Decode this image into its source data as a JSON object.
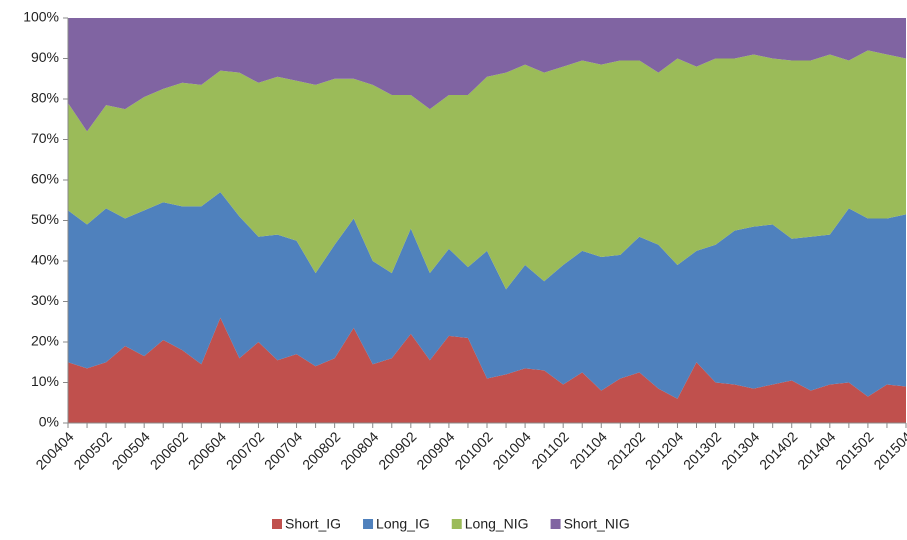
{
  "chart_data": {
    "type": "stacked-area-100",
    "categories": [
      "200404",
      null,
      "200502",
      null,
      "200504",
      null,
      "200602",
      null,
      "200604",
      null,
      "200702",
      null,
      "200704",
      null,
      "200802",
      null,
      "200804",
      null,
      "200902",
      null,
      "200904",
      null,
      "201002",
      null,
      "201004",
      null,
      "201102",
      null,
      "201104",
      null,
      "201202",
      null,
      "201204",
      null,
      "201302",
      null,
      "201304",
      null,
      "201402",
      null,
      "201404",
      null,
      "201502",
      null,
      "201504"
    ],
    "series": [
      {
        "name": "Short_IG",
        "color": "#c0504d",
        "values": [
          15,
          13.5,
          15,
          19,
          16.5,
          20.5,
          18,
          14.5,
          26,
          16,
          20,
          15.5,
          17,
          14,
          16,
          23.5,
          14.5,
          16,
          22,
          15.5,
          21.5,
          21,
          11,
          12,
          13.5,
          13,
          9.5,
          12.5,
          8,
          11,
          12.5,
          8.5,
          6,
          15,
          10,
          9.5,
          8.5,
          9.5,
          10.5,
          8,
          9.5,
          10,
          6.5,
          9.5,
          9
        ]
      },
      {
        "name": "Long_IG",
        "color": "#4f81bd",
        "values": [
          37.5,
          35.5,
          38,
          31.5,
          36,
          34,
          35.5,
          39,
          31,
          35,
          26,
          31,
          28,
          23,
          28,
          27,
          25.5,
          21,
          26,
          21.5,
          21.5,
          17.5,
          31.5,
          21,
          25.5,
          22,
          29.5,
          30,
          33,
          30.5,
          33.5,
          35.5,
          33,
          27.5,
          34,
          38,
          40,
          39.5,
          35,
          38,
          37,
          43,
          44,
          41,
          42.5
        ]
      },
      {
        "name": "Long_NIG",
        "color": "#9bbb59",
        "values": [
          26.5,
          23,
          25.5,
          27,
          28,
          28,
          30.5,
          30,
          30,
          35.5,
          38,
          39,
          39.5,
          46.5,
          41,
          34.5,
          43.5,
          44,
          33,
          40.5,
          38,
          42.5,
          43,
          53.5,
          49.5,
          51.5,
          49,
          47,
          47.5,
          48,
          43.5,
          42.5,
          51,
          45.5,
          46,
          42.5,
          42.5,
          41,
          44,
          43.5,
          44.5,
          36.5,
          41.5,
          40.5,
          38.5
        ]
      },
      {
        "name": "Short_NIG",
        "color": "#8064a2",
        "values": [
          21,
          28,
          21.5,
          22.5,
          19.5,
          17.5,
          16,
          16.5,
          13,
          13.5,
          16,
          14.5,
          15.5,
          16.5,
          15,
          15,
          16.5,
          19,
          19,
          22.5,
          19,
          19,
          14.5,
          13.5,
          11.5,
          13.5,
          12,
          10.5,
          11.5,
          10.5,
          10.5,
          13.5,
          10,
          12,
          10,
          10,
          9,
          10,
          10.5,
          10.5,
          9,
          10.5,
          8,
          9,
          10
        ]
      }
    ],
    "ylim": [
      0,
      100
    ],
    "yticks": [
      {
        "value": 0,
        "label": "0%"
      },
      {
        "value": 10,
        "label": "10%"
      },
      {
        "value": 20,
        "label": "20%"
      },
      {
        "value": 30,
        "label": "30%"
      },
      {
        "value": 40,
        "label": "40%"
      },
      {
        "value": 50,
        "label": "50%"
      },
      {
        "value": 60,
        "label": "60%"
      },
      {
        "value": 70,
        "label": "70%"
      },
      {
        "value": 80,
        "label": "80%"
      },
      {
        "value": 90,
        "label": "90%"
      },
      {
        "value": 100,
        "label": "100%"
      }
    ],
    "legend": "bottom"
  }
}
